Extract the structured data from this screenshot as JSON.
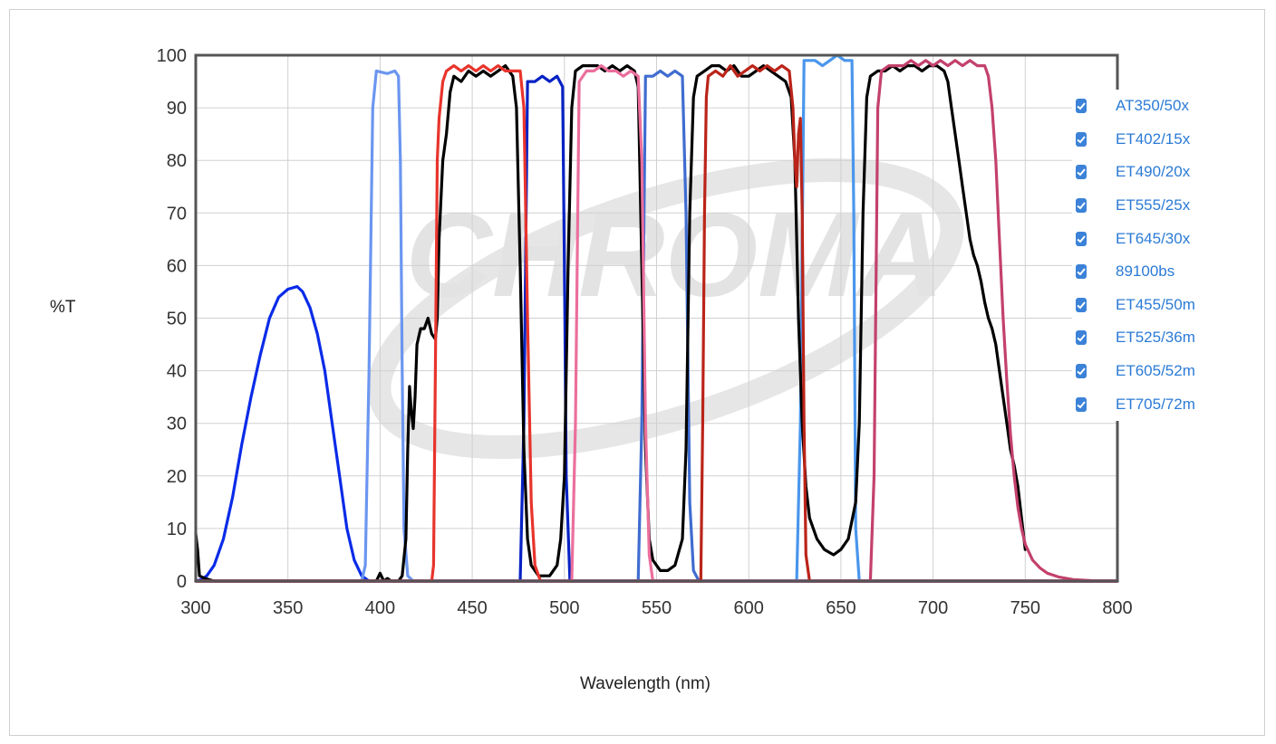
{
  "chart_data": {
    "type": "line",
    "title": "",
    "xlabel": "Wavelength (nm)",
    "ylabel": "%T",
    "xlim": [
      300,
      800
    ],
    "ylim": [
      0,
      100
    ],
    "x_ticks": [
      "300",
      "350",
      "400",
      "450",
      "500",
      "550",
      "600",
      "650",
      "700",
      "750",
      "800"
    ],
    "y_ticks": [
      "0",
      "10",
      "20",
      "30",
      "40",
      "50",
      "60",
      "70",
      "80",
      "90",
      "100"
    ],
    "grid": true,
    "legend_position": "right",
    "watermark": "CHROMA",
    "series": [
      {
        "name": "AT350/50x",
        "color": "#0a2be8",
        "points": [
          [
            300,
            0
          ],
          [
            303,
            0.3
          ],
          [
            306,
            1
          ],
          [
            310,
            3
          ],
          [
            315,
            8
          ],
          [
            320,
            16
          ],
          [
            325,
            26
          ],
          [
            330,
            35
          ],
          [
            335,
            43
          ],
          [
            340,
            50
          ],
          [
            345,
            54
          ],
          [
            350,
            55.5
          ],
          [
            355,
            56
          ],
          [
            358,
            55
          ],
          [
            362,
            52
          ],
          [
            366,
            47
          ],
          [
            370,
            40
          ],
          [
            374,
            30
          ],
          [
            378,
            20
          ],
          [
            382,
            10
          ],
          [
            386,
            4
          ],
          [
            390,
            1
          ],
          [
            394,
            0
          ],
          [
            400,
            0
          ],
          [
            800,
            0
          ]
        ]
      },
      {
        "name": "ET402/15x",
        "color": "#6b96f0",
        "points": [
          [
            300,
            0
          ],
          [
            390,
            0
          ],
          [
            392,
            3
          ],
          [
            394,
            40
          ],
          [
            396,
            90
          ],
          [
            398,
            97
          ],
          [
            404,
            96.5
          ],
          [
            408,
            97
          ],
          [
            410,
            96
          ],
          [
            411,
            80
          ],
          [
            412,
            40
          ],
          [
            413,
            10
          ],
          [
            415,
            1
          ],
          [
            418,
            0
          ],
          [
            800,
            0
          ]
        ]
      },
      {
        "name": "ET490/20x",
        "color": "#0622c4",
        "points": [
          [
            300,
            0
          ],
          [
            476,
            0
          ],
          [
            478,
            30
          ],
          [
            480,
            95
          ],
          [
            484,
            95
          ],
          [
            488,
            96
          ],
          [
            492,
            95
          ],
          [
            496,
            96
          ],
          [
            499,
            94
          ],
          [
            500,
            60
          ],
          [
            501,
            20
          ],
          [
            503,
            0
          ],
          [
            800,
            0
          ]
        ]
      },
      {
        "name": "ET555/25x",
        "color": "#3f6cd0",
        "points": [
          [
            300,
            0
          ],
          [
            540,
            0
          ],
          [
            542,
            30
          ],
          [
            544,
            96
          ],
          [
            548,
            96
          ],
          [
            552,
            97
          ],
          [
            556,
            96
          ],
          [
            560,
            97
          ],
          [
            564,
            96
          ],
          [
            566,
            70
          ],
          [
            568,
            15
          ],
          [
            570,
            2
          ],
          [
            573,
            0
          ],
          [
            800,
            0
          ]
        ]
      },
      {
        "name": "ET645/30x",
        "color": "#4a96ec",
        "points": [
          [
            300,
            0
          ],
          [
            626,
            0
          ],
          [
            628,
            30
          ],
          [
            630,
            99
          ],
          [
            636,
            99
          ],
          [
            640,
            98
          ],
          [
            644,
            99
          ],
          [
            648,
            100
          ],
          [
            652,
            99
          ],
          [
            656,
            99
          ],
          [
            657,
            70
          ],
          [
            658,
            10
          ],
          [
            660,
            0
          ],
          [
            800,
            0
          ]
        ]
      },
      {
        "name": "89100bs",
        "color": "#000000",
        "points": [
          [
            300,
            9
          ],
          [
            301,
            6
          ],
          [
            302,
            1
          ],
          [
            305,
            0.5
          ],
          [
            310,
            0
          ],
          [
            390,
            0
          ],
          [
            398,
            0
          ],
          [
            400,
            1.5
          ],
          [
            402,
            0
          ],
          [
            404,
            0.5
          ],
          [
            406,
            0
          ],
          [
            410,
            0
          ],
          [
            412,
            1
          ],
          [
            414,
            8
          ],
          [
            415,
            25
          ],
          [
            416,
            37
          ],
          [
            417,
            32
          ],
          [
            418,
            29
          ],
          [
            419,
            35
          ],
          [
            420,
            45
          ],
          [
            422,
            48
          ],
          [
            424,
            48
          ],
          [
            426,
            50
          ],
          [
            428,
            47
          ],
          [
            430,
            46
          ],
          [
            431,
            50
          ],
          [
            432,
            65
          ],
          [
            434,
            80
          ],
          [
            436,
            85
          ],
          [
            438,
            93
          ],
          [
            440,
            96
          ],
          [
            444,
            95
          ],
          [
            448,
            97
          ],
          [
            452,
            96
          ],
          [
            456,
            97
          ],
          [
            460,
            96
          ],
          [
            464,
            97
          ],
          [
            468,
            98
          ],
          [
            470,
            97
          ],
          [
            472,
            96
          ],
          [
            474,
            90
          ],
          [
            476,
            60
          ],
          [
            478,
            25
          ],
          [
            480,
            8
          ],
          [
            482,
            3
          ],
          [
            486,
            1
          ],
          [
            492,
            1
          ],
          [
            496,
            3
          ],
          [
            498,
            8
          ],
          [
            500,
            20
          ],
          [
            502,
            60
          ],
          [
            504,
            90
          ],
          [
            506,
            97
          ],
          [
            510,
            98
          ],
          [
            514,
            98
          ],
          [
            518,
            98
          ],
          [
            522,
            97
          ],
          [
            526,
            98
          ],
          [
            530,
            97
          ],
          [
            534,
            98
          ],
          [
            538,
            97
          ],
          [
            540,
            94
          ],
          [
            542,
            60
          ],
          [
            544,
            25
          ],
          [
            546,
            8
          ],
          [
            548,
            4
          ],
          [
            552,
            2
          ],
          [
            556,
            2
          ],
          [
            560,
            3
          ],
          [
            564,
            8
          ],
          [
            566,
            25
          ],
          [
            568,
            70
          ],
          [
            570,
            92
          ],
          [
            572,
            96
          ],
          [
            576,
            97
          ],
          [
            580,
            98
          ],
          [
            584,
            98
          ],
          [
            588,
            97
          ],
          [
            592,
            98
          ],
          [
            596,
            96
          ],
          [
            600,
            96
          ],
          [
            604,
            97
          ],
          [
            608,
            98
          ],
          [
            612,
            97
          ],
          [
            616,
            96
          ],
          [
            620,
            95
          ],
          [
            623,
            92
          ],
          [
            625,
            80
          ],
          [
            627,
            50
          ],
          [
            629,
            30
          ],
          [
            631,
            18
          ],
          [
            633,
            12
          ],
          [
            637,
            8
          ],
          [
            641,
            6
          ],
          [
            646,
            5
          ],
          [
            650,
            6
          ],
          [
            654,
            8
          ],
          [
            658,
            15
          ],
          [
            660,
            30
          ],
          [
            662,
            70
          ],
          [
            664,
            92
          ],
          [
            666,
            96
          ],
          [
            670,
            97
          ],
          [
            674,
            97
          ],
          [
            678,
            98
          ],
          [
            682,
            97
          ],
          [
            686,
            98
          ],
          [
            690,
            98
          ],
          [
            694,
            97
          ],
          [
            698,
            98
          ],
          [
            702,
            98
          ],
          [
            706,
            97
          ],
          [
            708,
            95
          ],
          [
            710,
            90
          ],
          [
            712,
            85
          ],
          [
            714,
            80
          ],
          [
            716,
            75
          ],
          [
            718,
            70
          ],
          [
            720,
            65
          ],
          [
            722,
            62
          ],
          [
            724,
            60
          ],
          [
            726,
            57
          ],
          [
            728,
            53
          ],
          [
            730,
            50
          ],
          [
            732,
            48
          ],
          [
            734,
            45
          ],
          [
            736,
            40
          ],
          [
            738,
            35
          ],
          [
            740,
            30
          ],
          [
            742,
            25
          ],
          [
            744,
            22
          ],
          [
            746,
            18
          ],
          [
            748,
            12
          ],
          [
            750,
            6
          ]
        ]
      },
      {
        "name": "ET455/50m",
        "color": "#e8342c",
        "points": [
          [
            300,
            0
          ],
          [
            428,
            0
          ],
          [
            429,
            3
          ],
          [
            430,
            40
          ],
          [
            431,
            80
          ],
          [
            432,
            88
          ],
          [
            434,
            95
          ],
          [
            436,
            97
          ],
          [
            440,
            98
          ],
          [
            444,
            97
          ],
          [
            448,
            98
          ],
          [
            452,
            97
          ],
          [
            456,
            98
          ],
          [
            460,
            97
          ],
          [
            464,
            98
          ],
          [
            468,
            97
          ],
          [
            472,
            97
          ],
          [
            476,
            97
          ],
          [
            478,
            90
          ],
          [
            480,
            50
          ],
          [
            482,
            15
          ],
          [
            484,
            3
          ],
          [
            487,
            0
          ],
          [
            800,
            0
          ]
        ]
      },
      {
        "name": "ET525/36m",
        "color": "#eb6f9c",
        "points": [
          [
            300,
            0
          ],
          [
            504,
            0
          ],
          [
            506,
            30
          ],
          [
            508,
            95
          ],
          [
            512,
            97
          ],
          [
            516,
            97
          ],
          [
            520,
            98
          ],
          [
            524,
            97
          ],
          [
            528,
            97
          ],
          [
            532,
            96
          ],
          [
            536,
            97
          ],
          [
            540,
            96
          ],
          [
            542,
            80
          ],
          [
            544,
            30
          ],
          [
            546,
            5
          ],
          [
            548,
            0
          ],
          [
            800,
            0
          ]
        ]
      },
      {
        "name": "ET605/52m",
        "color": "#bb2419",
        "points": [
          [
            300,
            0
          ],
          [
            574,
            0
          ],
          [
            575,
            30
          ],
          [
            576,
            70
          ],
          [
            577,
            92
          ],
          [
            578,
            96
          ],
          [
            582,
            97
          ],
          [
            586,
            96
          ],
          [
            590,
            98
          ],
          [
            594,
            96
          ],
          [
            598,
            97
          ],
          [
            602,
            98
          ],
          [
            606,
            97
          ],
          [
            610,
            98
          ],
          [
            614,
            97
          ],
          [
            618,
            98
          ],
          [
            622,
            97
          ],
          [
            624,
            90
          ],
          [
            625,
            80
          ],
          [
            626,
            75
          ],
          [
            627,
            85
          ],
          [
            628,
            88
          ],
          [
            629,
            70
          ],
          [
            630,
            30
          ],
          [
            631,
            5
          ],
          [
            633,
            0
          ],
          [
            640,
            0
          ],
          [
            700,
            0
          ],
          [
            750,
            0
          ],
          [
            800,
            0
          ]
        ]
      },
      {
        "name": "ET705/72m",
        "color": "#c3416b",
        "points": [
          [
            300,
            0
          ],
          [
            666,
            0
          ],
          [
            668,
            20
          ],
          [
            670,
            90
          ],
          [
            672,
            97
          ],
          [
            676,
            98
          ],
          [
            680,
            98
          ],
          [
            684,
            98
          ],
          [
            688,
            99
          ],
          [
            692,
            98
          ],
          [
            696,
            99
          ],
          [
            700,
            98
          ],
          [
            704,
            99
          ],
          [
            708,
            98
          ],
          [
            712,
            99
          ],
          [
            716,
            98
          ],
          [
            720,
            99
          ],
          [
            724,
            98
          ],
          [
            728,
            98
          ],
          [
            730,
            96
          ],
          [
            732,
            90
          ],
          [
            734,
            80
          ],
          [
            736,
            65
          ],
          [
            738,
            50
          ],
          [
            740,
            38
          ],
          [
            742,
            28
          ],
          [
            744,
            20
          ],
          [
            746,
            14
          ],
          [
            748,
            10
          ],
          [
            750,
            7
          ],
          [
            754,
            4
          ],
          [
            758,
            2.5
          ],
          [
            762,
            1.5
          ],
          [
            768,
            0.8
          ],
          [
            776,
            0.3
          ],
          [
            790,
            0
          ],
          [
            800,
            0
          ]
        ]
      }
    ]
  }
}
